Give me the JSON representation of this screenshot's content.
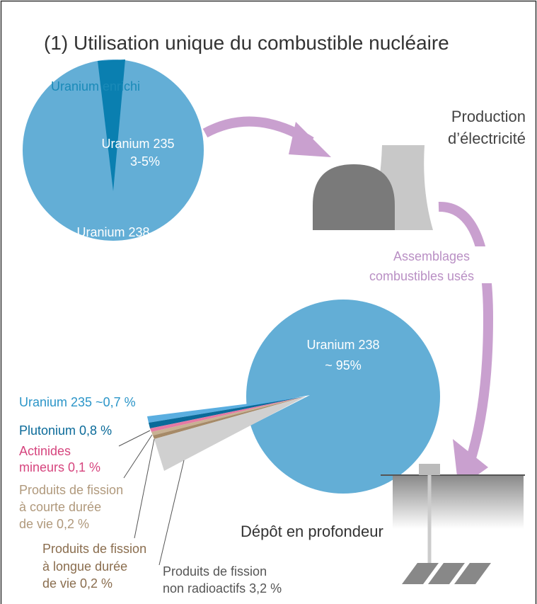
{
  "title": "(1)  Utilisation unique du combustible nucléaire",
  "fresh_fuel": {
    "label": "Uranium enrichi",
    "u235": [
      "Uranium 235",
      "3-5%"
    ],
    "u238": "Uranium 238"
  },
  "plant": {
    "label": [
      "Production",
      "d’électricité"
    ]
  },
  "transfer": {
    "label": [
      "Assemblages",
      "combustibles usés"
    ]
  },
  "spent_fuel": {
    "u238": [
      "Uranium 238",
      "~ 95%"
    ],
    "u235": "Uranium 235  ~0,7 %",
    "plutonium": "Plutonium 0,8 %",
    "actinides": [
      "Actinides",
      "mineurs  0,1 %"
    ],
    "short_fission": [
      "Produits de fission",
      "à courte durée",
      "de vie  0,2 %"
    ],
    "long_fission": [
      "Produits de fission",
      "à longue durée",
      "de vie  0,2 %"
    ],
    "stable_fission": [
      "Produits de fission",
      "non radioactifs  3,2 %"
    ]
  },
  "repository": {
    "label": "Dépôt en profondeur"
  }
}
